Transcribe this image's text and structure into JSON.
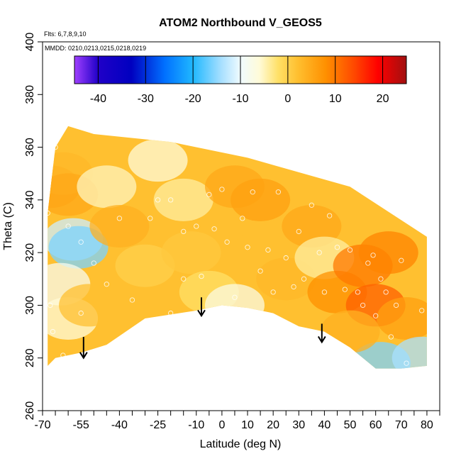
{
  "chart_data": {
    "type": "heatmap",
    "title": "ATOM2 Northbound V_GEOS5",
    "subtitle_lines": [
      "Flts: 6,7,8,9,10",
      "MMDD: 0210,0213,0215,0218,0219"
    ],
    "xlabel": "Latitude (deg N)",
    "ylabel": "Theta (C)",
    "xlim": [
      -70,
      85
    ],
    "ylim": [
      260,
      400
    ],
    "x_ticks": [
      -70,
      -55,
      -40,
      -25,
      -10,
      0,
      10,
      20,
      30,
      40,
      50,
      60,
      70,
      80
    ],
    "x_minor_ticks": [
      -65,
      -60,
      -50,
      -45,
      -35,
      -30,
      -20,
      -15,
      -5,
      5,
      15,
      25,
      35,
      45,
      55,
      65,
      75,
      85
    ],
    "y_ticks": [
      260,
      280,
      300,
      320,
      340,
      360,
      380,
      400
    ],
    "colorbar": {
      "range": [
        -45,
        25
      ],
      "tick_values": [
        -40,
        -30,
        -20,
        -10,
        0,
        10,
        20
      ],
      "tick_labels": [
        "-40",
        "-30",
        "-20",
        "-10",
        "0",
        "10",
        "20"
      ],
      "stops": [
        {
          "v": -45,
          "c": "#a040ff"
        },
        {
          "v": -40,
          "c": "#2000c8"
        },
        {
          "v": -33,
          "c": "#0000c0"
        },
        {
          "v": -26,
          "c": "#0070ff"
        },
        {
          "v": -20,
          "c": "#20b8ff"
        },
        {
          "v": -14,
          "c": "#a8e0ff"
        },
        {
          "v": -10,
          "c": "#f0fbff"
        },
        {
          "v": -6,
          "c": "#fffbd8"
        },
        {
          "v": -2,
          "c": "#ffe066"
        },
        {
          "v": 2,
          "c": "#ffc030"
        },
        {
          "v": 8,
          "c": "#ff9000"
        },
        {
          "v": 14,
          "c": "#ff4800"
        },
        {
          "v": 19,
          "c": "#ff0000"
        },
        {
          "v": 25,
          "c": "#a01010"
        }
      ]
    },
    "field_top": [
      [
        -68,
        335
      ],
      [
        -65,
        360
      ],
      [
        -60,
        368
      ],
      [
        -50,
        365
      ],
      [
        -20,
        362
      ],
      [
        10,
        356
      ],
      [
        50,
        345
      ],
      [
        80,
        326
      ]
    ],
    "field_bottom": [
      [
        -68,
        277
      ],
      [
        -65,
        280
      ],
      [
        -55,
        282
      ],
      [
        -45,
        285
      ],
      [
        -30,
        295
      ],
      [
        -10,
        298
      ],
      [
        0,
        300
      ],
      [
        10,
        299
      ],
      [
        20,
        297
      ],
      [
        30,
        292
      ],
      [
        40,
        290
      ],
      [
        50,
        284
      ],
      [
        60,
        276
      ],
      [
        70,
        276
      ],
      [
        80,
        277
      ]
    ],
    "field_cells": [
      {
        "lat": -67,
        "theta": 345,
        "v": 6
      },
      {
        "lat": -62,
        "theta": 350,
        "v": 3
      },
      {
        "lat": -60,
        "theta": 342,
        "v": 5
      },
      {
        "lat": -58,
        "theta": 325,
        "v": -12
      },
      {
        "lat": -56,
        "theta": 322,
        "v": -16
      },
      {
        "lat": -63,
        "theta": 308,
        "v": -8
      },
      {
        "lat": -60,
        "theta": 295,
        "v": -6
      },
      {
        "lat": -52,
        "theta": 300,
        "v": 2
      },
      {
        "lat": -45,
        "theta": 345,
        "v": -5
      },
      {
        "lat": -40,
        "theta": 330,
        "v": 4
      },
      {
        "lat": -30,
        "theta": 315,
        "v": 0
      },
      {
        "lat": -25,
        "theta": 355,
        "v": -6
      },
      {
        "lat": -15,
        "theta": 340,
        "v": -4
      },
      {
        "lat": -12,
        "theta": 320,
        "v": 1
      },
      {
        "lat": -5,
        "theta": 305,
        "v": -2
      },
      {
        "lat": 5,
        "theta": 345,
        "v": 5
      },
      {
        "lat": 5,
        "theta": 300,
        "v": -7
      },
      {
        "lat": 15,
        "theta": 340,
        "v": 6
      },
      {
        "lat": 15,
        "theta": 320,
        "v": 2
      },
      {
        "lat": 25,
        "theta": 310,
        "v": 3
      },
      {
        "lat": 35,
        "theta": 330,
        "v": 5
      },
      {
        "lat": 40,
        "theta": 318,
        "v": -4
      },
      {
        "lat": 45,
        "theta": 305,
        "v": 8
      },
      {
        "lat": 55,
        "theta": 315,
        "v": 10
      },
      {
        "lat": 60,
        "theta": 300,
        "v": 12
      },
      {
        "lat": 65,
        "theta": 320,
        "v": 9
      },
      {
        "lat": 72,
        "theta": 295,
        "v": 6
      },
      {
        "lat": 62,
        "theta": 278,
        "v": -16
      },
      {
        "lat": 78,
        "theta": 280,
        "v": -14
      },
      {
        "lat": 50,
        "theta": 290,
        "v": 4
      }
    ],
    "points": [
      {
        "lat": -68,
        "theta": 335
      },
      {
        "lat": -67,
        "theta": 300
      },
      {
        "lat": -66,
        "theta": 290
      },
      {
        "lat": -65,
        "theta": 360
      },
      {
        "lat": -60,
        "theta": 330
      },
      {
        "lat": -55,
        "theta": 324
      },
      {
        "lat": -55,
        "theta": 297
      },
      {
        "lat": -62,
        "theta": 281
      },
      {
        "lat": -50,
        "theta": 316
      },
      {
        "lat": -45,
        "theta": 308
      },
      {
        "lat": -40,
        "theta": 333
      },
      {
        "lat": -35,
        "theta": 302
      },
      {
        "lat": -28,
        "theta": 333
      },
      {
        "lat": -25,
        "theta": 340
      },
      {
        "lat": -20,
        "theta": 340
      },
      {
        "lat": -20,
        "theta": 297
      },
      {
        "lat": -15,
        "theta": 328
      },
      {
        "lat": -15,
        "theta": 310
      },
      {
        "lat": -10,
        "theta": 330
      },
      {
        "lat": -8,
        "theta": 311
      },
      {
        "lat": -5,
        "theta": 342
      },
      {
        "lat": -3,
        "theta": 329
      },
      {
        "lat": 0,
        "theta": 344
      },
      {
        "lat": 2,
        "theta": 324
      },
      {
        "lat": 5,
        "theta": 303
      },
      {
        "lat": 8,
        "theta": 333
      },
      {
        "lat": 10,
        "theta": 322
      },
      {
        "lat": 12,
        "theta": 343
      },
      {
        "lat": 15,
        "theta": 313
      },
      {
        "lat": 18,
        "theta": 321
      },
      {
        "lat": 20,
        "theta": 305
      },
      {
        "lat": 22,
        "theta": 343
      },
      {
        "lat": 25,
        "theta": 318
      },
      {
        "lat": 28,
        "theta": 307
      },
      {
        "lat": 30,
        "theta": 328
      },
      {
        "lat": 32,
        "theta": 310
      },
      {
        "lat": 35,
        "theta": 338
      },
      {
        "lat": 38,
        "theta": 320
      },
      {
        "lat": 40,
        "theta": 305
      },
      {
        "lat": 42,
        "theta": 334
      },
      {
        "lat": 45,
        "theta": 322
      },
      {
        "lat": 48,
        "theta": 306
      },
      {
        "lat": 50,
        "theta": 321
      },
      {
        "lat": 53,
        "theta": 305
      },
      {
        "lat": 55,
        "theta": 300
      },
      {
        "lat": 57,
        "theta": 316
      },
      {
        "lat": 59,
        "theta": 319
      },
      {
        "lat": 60,
        "theta": 296
      },
      {
        "lat": 62,
        "theta": 310
      },
      {
        "lat": 64,
        "theta": 305
      },
      {
        "lat": 66,
        "theta": 288
      },
      {
        "lat": 68,
        "theta": 300
      },
      {
        "lat": 70,
        "theta": 317
      },
      {
        "lat": 72,
        "theta": 278
      },
      {
        "lat": 78,
        "theta": 298
      }
    ],
    "arrows": [
      {
        "lat": -54,
        "theta_from": 288,
        "theta_to": 280
      },
      {
        "lat": -8,
        "theta_from": 303,
        "theta_to": 296
      },
      {
        "lat": 39,
        "theta_from": 293,
        "theta_to": 286
      }
    ]
  }
}
